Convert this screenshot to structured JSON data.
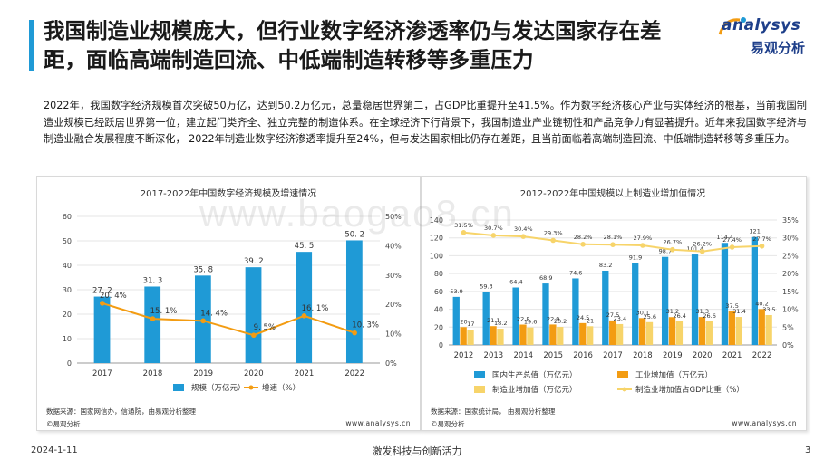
{
  "title": "我国制造业规模庞大，但行业数字经济渗透率仍与发达国家存在差距，面临高端制造回流、中低端制造转移等多重压力",
  "logo": {
    "en": "analysys",
    "cn": "易观分析"
  },
  "intro": "2022年，我国数字经济规模首次突破50万亿，达到50.2万亿元，总量稳居世界第二，占GDP比重提升至41.5%。作为数字经济核心产业与实体经济的根基，当前我国制造业规模已经跃居世界第一位，建立起门类齐全、独立完整的制造体系。在全球经济下行背景下，我国制造业产业链韧性和产品竞争力有显著提升。近年来我国数字经济与制造业融合发展程度不断深化， 2022年制造业数字经济渗透率提升至24%，但与发达国家相比仍存在差距，且当前面临着高端制造回流、中低端制造转移等多重压力。",
  "watermark": "www.baogao8.cn",
  "left_panel": {
    "source": "数据来源：国家网信办，信通院，由易观分析整理",
    "brand": "©易观分析",
    "url": "www.analysys.cn"
  },
  "right_panel": {
    "source": "数据来源：国家统计局， 由易观分析整理",
    "brand": "©易观分析",
    "url": "www.analysys.cn"
  },
  "footer": {
    "date": "2024-1-11",
    "slogan": "激发科技与创新活力",
    "page": "3"
  },
  "colors": {
    "blue": "#1f9ad6",
    "orange": "#f39c12",
    "yellow": "#f7d46a",
    "gray_line": "#c9c9c9",
    "accent": "#1f9ad6"
  },
  "chart_data": [
    {
      "type": "bar",
      "title": "2017-2022年中国数字经济规模及增速情况",
      "categories": [
        "2017",
        "2018",
        "2019",
        "2020",
        "2021",
        "2022"
      ],
      "series": [
        {
          "name": "规模（万亿元）",
          "type": "bar",
          "axis": "left",
          "values": [
            27.2,
            31.3,
            35.8,
            39.2,
            45.5,
            50.2
          ],
          "labels": [
            "27. 2",
            "31. 3",
            "35. 8",
            "39. 2",
            "45. 5",
            "50. 2"
          ]
        },
        {
          "name": "增速（%）",
          "type": "line",
          "axis": "right",
          "values": [
            20.4,
            15.1,
            14.4,
            9.5,
            16.1,
            10.3
          ],
          "labels": [
            "20. 4%",
            "15. 1%",
            "14. 4%",
            "9. 5%",
            "16. 1%",
            "10. 3%"
          ]
        }
      ],
      "y_left": {
        "min": 0,
        "max": 60,
        "ticks": [
          "0",
          "10",
          "20",
          "30",
          "40",
          "50",
          "60"
        ]
      },
      "y_right": {
        "min": 0,
        "max": 50,
        "ticks": [
          "0%",
          "10%",
          "20%",
          "30%",
          "40%",
          "50%"
        ]
      },
      "legend_position": "bottom"
    },
    {
      "type": "bar",
      "title": "2012-2022年中国规模以上制造业增加值情况",
      "categories": [
        "2012",
        "2013",
        "2014",
        "2015",
        "2016",
        "2017",
        "2018",
        "2019",
        "2020",
        "2021",
        "2022"
      ],
      "series": [
        {
          "name": "国内生产总值（万亿元）",
          "type": "bar",
          "axis": "left",
          "values": [
            53.9,
            59.3,
            64.4,
            68.9,
            74.6,
            83.2,
            91.9,
            98.7,
            101.4,
            114.4,
            121
          ],
          "labels": [
            "53.9",
            "59.3",
            "64.4",
            "68.9",
            "74.6",
            "83.2",
            "91.9",
            "98.7",
            "101.4",
            "114.4",
            "121"
          ]
        },
        {
          "name": "工业增加值（万亿元）",
          "type": "bar",
          "axis": "left",
          "values": [
            20,
            21.1,
            22.8,
            22.9,
            24.5,
            27.5,
            30.1,
            31.2,
            31.3,
            37.5,
            40.2
          ],
          "labels": [
            "20",
            "21.1",
            "22.8",
            "22.9",
            "24.5",
            "27.5",
            "30.1",
            "31.2",
            "31.3",
            "37.5",
            "40.2"
          ]
        },
        {
          "name": "制造业增加值（万亿元）",
          "type": "bar",
          "axis": "left",
          "values": [
            17,
            18.2,
            19.6,
            20.2,
            21,
            23.4,
            25.6,
            26.4,
            26.6,
            31.4,
            33.5
          ],
          "labels": [
            "17",
            "18.2",
            "19.6",
            "20.2",
            "21",
            "23.4",
            "25.6",
            "26.4",
            "26.6",
            "31.4",
            "33.5"
          ]
        },
        {
          "name": "制造业增加值占GDP比重（%）",
          "type": "line",
          "axis": "right",
          "values": [
            31.5,
            30.7,
            30.4,
            29.3,
            28.2,
            28.1,
            27.9,
            26.7,
            26.2,
            27.4,
            27.7
          ],
          "labels": [
            "31.5%",
            "30.7%",
            "30.4%",
            "29.3%",
            "28.2%",
            "28.1%",
            "27.9%",
            "26.7%",
            "26.2%",
            "27.4%",
            "27.7%"
          ]
        }
      ],
      "y_left": {
        "min": 0,
        "max": 140,
        "ticks": [
          "0",
          "20",
          "40",
          "60",
          "80",
          "100",
          "120",
          "140"
        ]
      },
      "y_right": {
        "min": 0,
        "max": 35,
        "ticks": [
          "0%",
          "5%",
          "10%",
          "15%",
          "20%",
          "25%",
          "30%",
          "35%"
        ]
      },
      "legend_position": "bottom"
    }
  ]
}
